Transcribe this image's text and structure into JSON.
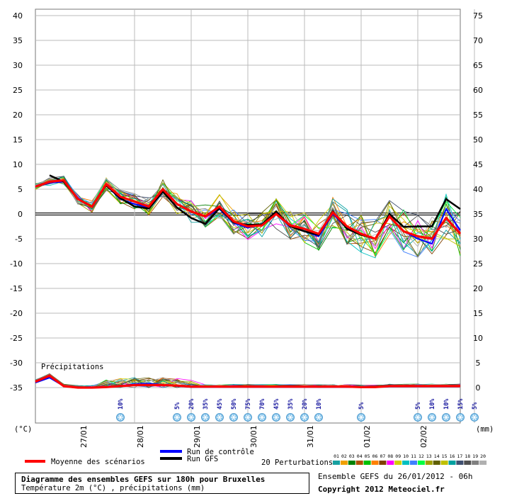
{
  "chart_data": {
    "type": "line",
    "left_axis": {
      "label": "(°C)",
      "ticks": [
        40,
        35,
        30,
        25,
        20,
        15,
        10,
        5,
        0,
        -5,
        -10,
        -15,
        -20,
        -25,
        -30,
        -35
      ]
    },
    "right_axis": {
      "label": "(mm)",
      "ticks": [
        75,
        70,
        65,
        60,
        55,
        50,
        45,
        40,
        35,
        30,
        25,
        20,
        15,
        10,
        5,
        0
      ]
    },
    "x_day_labels": [
      "27/01",
      "28/01",
      "29/01",
      "30/01",
      "31/01",
      "01/02",
      "02/02"
    ],
    "step_hours": 6,
    "precip_label": "Précipitations",
    "snow_probabilities": [
      {
        "step": 6,
        "label": "10%"
      },
      {
        "step": 10,
        "label": "5%"
      },
      {
        "step": 11,
        "label": "20%"
      },
      {
        "step": 12,
        "label": "35%"
      },
      {
        "step": 13,
        "label": "45%"
      },
      {
        "step": 14,
        "label": "50%"
      },
      {
        "step": 15,
        "label": "75%"
      },
      {
        "step": 16,
        "label": "70%"
      },
      {
        "step": 17,
        "label": "45%"
      },
      {
        "step": 18,
        "label": "35%"
      },
      {
        "step": 19,
        "label": "20%"
      },
      {
        "step": 20,
        "label": "10%"
      },
      {
        "step": 23,
        "label": "5%"
      },
      {
        "step": 27,
        "label": "5%"
      },
      {
        "step": 28,
        "label": "10%"
      },
      {
        "step": 29,
        "label": "10%"
      },
      {
        "step": 30,
        "label": "15%"
      },
      {
        "step": 31,
        "label": "5%"
      }
    ],
    "series": [
      {
        "name": "Moyenne des scénarios",
        "color": "#ff0000",
        "temp": [
          5.5,
          6.5,
          6.8,
          3,
          1.5,
          6,
          3.5,
          2.5,
          1.5,
          5,
          2,
          0.5,
          -0.5,
          1.5,
          -1.5,
          -2.5,
          -2.3,
          0,
          -2.3,
          -3,
          -4,
          0.3,
          -2.5,
          -4,
          -5,
          -0.5,
          -3.5,
          -4.5,
          -5,
          -0.8,
          -4
        ],
        "precip": [
          1.2,
          2.4,
          0.3,
          0,
          0,
          0.1,
          0.3,
          0.5,
          0.5,
          0.5,
          0.4,
          0.2,
          0.2,
          0.2,
          0.2,
          0.2,
          0.2,
          0.2,
          0.2,
          0.2,
          0.2,
          0.2,
          0.2,
          0.1,
          0.1,
          0.3,
          0.3,
          0.3,
          0.3,
          0.3,
          0.3
        ]
      },
      {
        "name": "Run de contrôle",
        "color": "#0000ff",
        "temp": [
          5.5,
          6.3,
          6.5,
          3.2,
          1.5,
          5.8,
          3,
          2,
          1.3,
          4.8,
          2,
          0.5,
          -0.6,
          1,
          -1.8,
          -2.8,
          -2,
          0.3,
          -2.2,
          -3.5,
          -4.5,
          0,
          -2.8,
          -4,
          -5,
          -0.5,
          -3.5,
          -5,
          -6,
          1,
          -3.3
        ],
        "precip": [
          1,
          2,
          0.3,
          0,
          0,
          0.1,
          0.4,
          0.7,
          0.8,
          0.6,
          0.3,
          0.1,
          0.1,
          0.1,
          0.1,
          0.1,
          0.1,
          0.1,
          0.1,
          0.1,
          0.1,
          0.1,
          0.1,
          0.1,
          0.1,
          0.2,
          0.2,
          0.2,
          0.2,
          0.2,
          0.2
        ]
      },
      {
        "name": "Run GFS",
        "color": "#000000",
        "temp": [
          null,
          7.8,
          6.5,
          3,
          1.5,
          5.8,
          3.2,
          1.5,
          1.1,
          4.5,
          1.3,
          -0.8,
          -2,
          1.2,
          -1.7,
          -2.2,
          -2.1,
          0.5,
          -2.5,
          -3.5,
          -4.2,
          0.5,
          -3,
          -4.2,
          -5,
          0,
          -2.6,
          -2.5,
          -2.5,
          3,
          1
        ]
      },
      {
        "name": "20 Perturbations",
        "color": "#888888"
      }
    ],
    "perturbation_numbers": [
      "01",
      "02",
      "03",
      "04",
      "05",
      "06",
      "07",
      "08",
      "09",
      "10",
      "11",
      "12",
      "13",
      "14",
      "15",
      "16",
      "17",
      "18",
      "19",
      "20"
    ],
    "perturbation_colors": [
      "#18a0a0",
      "#f0a000",
      "#008000",
      "#b05000",
      "#00c000",
      "#ff8000",
      "#804000",
      "#ff00ff",
      "#d0d000",
      "#00c0c0",
      "#4080ff",
      "#00ff40",
      "#a0a000",
      "#606000",
      "#c0c000",
      "#00a0a0",
      "#405070",
      "#505050",
      "#808080",
      "#b0b0b0"
    ]
  },
  "info": {
    "title": "Diagramme des ensembles GEFS sur 180h pour Bruxelles",
    "subtitle": "Température 2m (°C) , précipitations (mm)",
    "run": "Ensemble GEFS du 26/01/2012 - 06h",
    "copyright": "Copyright 2012 Meteociel.fr"
  }
}
